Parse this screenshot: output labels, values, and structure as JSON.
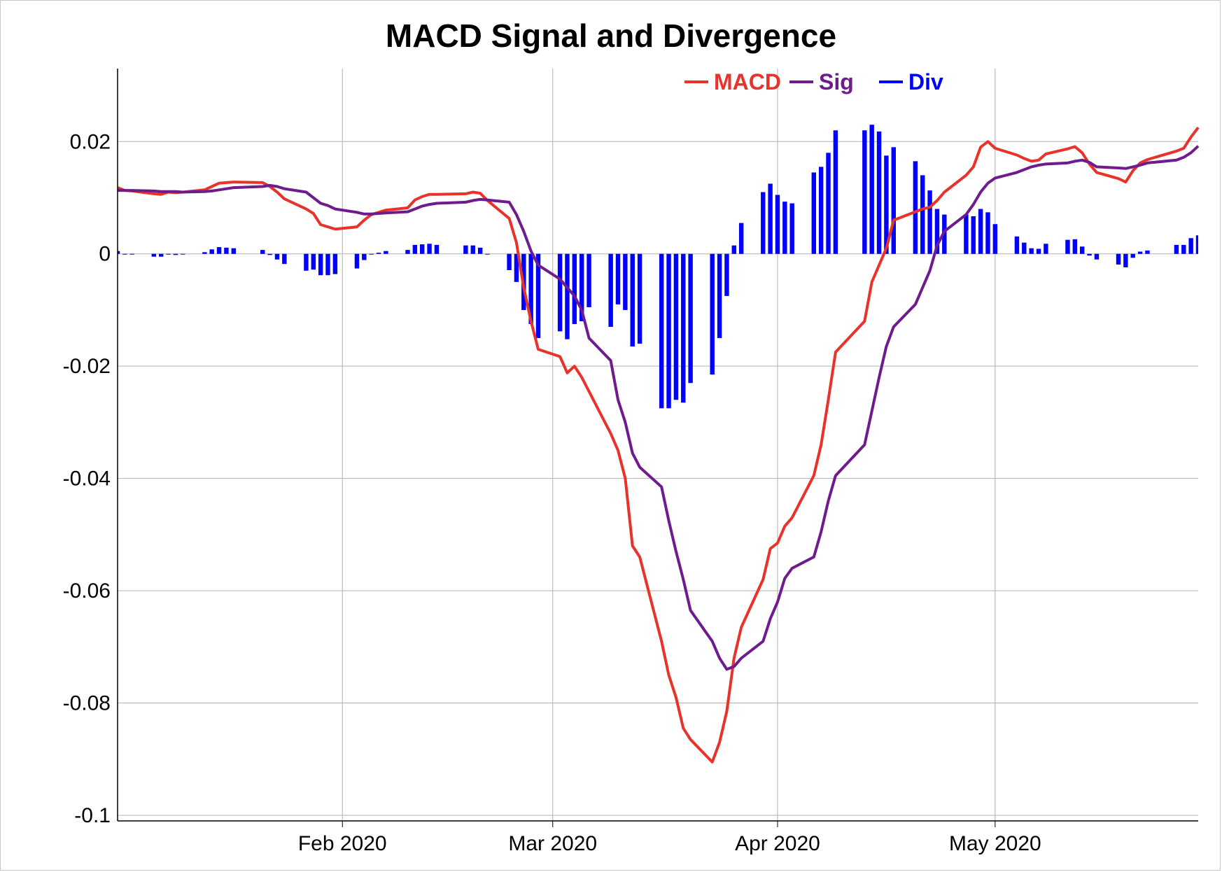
{
  "chart_data": {
    "type": "line",
    "title": "MACD Signal and Divergence",
    "xlabel": "",
    "ylabel": "",
    "x_range": [
      "2020-01-01",
      "2020-05-29"
    ],
    "ylim": [
      -0.101,
      0.033
    ],
    "yticks": [
      0.02,
      0,
      -0.02,
      -0.04,
      -0.06,
      -0.08,
      -0.1
    ],
    "ytick_labels": [
      "0.02",
      "0",
      "-0.02",
      "-0.04",
      "-0.06",
      "-0.08",
      "-0.1"
    ],
    "xticks": [
      "2020-02-01",
      "2020-03-01",
      "2020-04-01",
      "2020-05-01"
    ],
    "xtick_labels": [
      "Feb 2020",
      "Mar 2020",
      "Apr 2020",
      "May 2020"
    ],
    "grid": true,
    "legend_position": "top-right",
    "dates": [
      "2020-01-01",
      "2020-01-02",
      "2020-01-03",
      "2020-01-06",
      "2020-01-07",
      "2020-01-08",
      "2020-01-09",
      "2020-01-10",
      "2020-01-13",
      "2020-01-14",
      "2020-01-15",
      "2020-01-16",
      "2020-01-17",
      "2020-01-21",
      "2020-01-22",
      "2020-01-23",
      "2020-01-24",
      "2020-01-27",
      "2020-01-28",
      "2020-01-29",
      "2020-01-30",
      "2020-01-31",
      "2020-02-03",
      "2020-02-04",
      "2020-02-05",
      "2020-02-06",
      "2020-02-07",
      "2020-02-10",
      "2020-02-11",
      "2020-02-12",
      "2020-02-13",
      "2020-02-14",
      "2020-02-18",
      "2020-02-19",
      "2020-02-20",
      "2020-02-21",
      "2020-02-24",
      "2020-02-25",
      "2020-02-26",
      "2020-02-27",
      "2020-02-28",
      "2020-03-02",
      "2020-03-03",
      "2020-03-04",
      "2020-03-05",
      "2020-03-06",
      "2020-03-09",
      "2020-03-10",
      "2020-03-11",
      "2020-03-12",
      "2020-03-13",
      "2020-03-16",
      "2020-03-17",
      "2020-03-18",
      "2020-03-19",
      "2020-03-20",
      "2020-03-23",
      "2020-03-24",
      "2020-03-25",
      "2020-03-26",
      "2020-03-27",
      "2020-03-30",
      "2020-03-31",
      "2020-04-01",
      "2020-04-02",
      "2020-04-03",
      "2020-04-06",
      "2020-04-07",
      "2020-04-08",
      "2020-04-09",
      "2020-04-13",
      "2020-04-14",
      "2020-04-15",
      "2020-04-16",
      "2020-04-17",
      "2020-04-20",
      "2020-04-21",
      "2020-04-22",
      "2020-04-23",
      "2020-04-24",
      "2020-04-27",
      "2020-04-28",
      "2020-04-29",
      "2020-04-30",
      "2020-05-01",
      "2020-05-04",
      "2020-05-05",
      "2020-05-06",
      "2020-05-07",
      "2020-05-08",
      "2020-05-11",
      "2020-05-12",
      "2020-05-13",
      "2020-05-14",
      "2020-05-15",
      "2020-05-18",
      "2020-05-19",
      "2020-05-20",
      "2020-05-21",
      "2020-05-22",
      "2020-05-26",
      "2020-05-27",
      "2020-05-28",
      "2020-05-29"
    ],
    "series": [
      {
        "name": "MACD",
        "color": "#e8332a",
        "kind": "line",
        "values": [
          0.0118,
          0.0113,
          0.0112,
          0.0107,
          0.0106,
          0.011,
          0.0109,
          0.011,
          0.0114,
          0.012,
          0.0126,
          0.0127,
          0.0128,
          0.0127,
          0.012,
          0.011,
          0.0098,
          0.008,
          0.0072,
          0.0052,
          0.0048,
          0.0044,
          0.0048,
          0.006,
          0.007,
          0.0074,
          0.0078,
          0.0082,
          0.0096,
          0.0102,
          0.0106,
          0.0106,
          0.0107,
          0.011,
          0.0108,
          0.0095,
          0.0063,
          0.002,
          -0.006,
          -0.012,
          -0.017,
          -0.0183,
          -0.0212,
          -0.02,
          -0.022,
          -0.0245,
          -0.032,
          -0.035,
          -0.04,
          -0.052,
          -0.054,
          -0.069,
          -0.075,
          -0.079,
          -0.0845,
          -0.0865,
          -0.0905,
          -0.087,
          -0.0815,
          -0.072,
          -0.0665,
          -0.058,
          -0.0525,
          -0.0515,
          -0.0485,
          -0.047,
          -0.0395,
          -0.034,
          -0.026,
          -0.0175,
          -0.012,
          -0.005,
          -0.002,
          0.001,
          0.006,
          0.0075,
          0.008,
          0.0083,
          0.0095,
          0.011,
          0.014,
          0.0155,
          0.019,
          0.02,
          0.0188,
          0.0176,
          0.017,
          0.0165,
          0.0167,
          0.0178,
          0.0187,
          0.0191,
          0.018,
          0.016,
          0.0145,
          0.0134,
          0.0128,
          0.0148,
          0.0162,
          0.0168,
          0.0183,
          0.0188,
          0.0208,
          0.0225
        ]
      },
      {
        "name": "Sig",
        "color": "#6e1b8e",
        "kind": "line",
        "values": [
          0.0113,
          0.0113,
          0.0113,
          0.0112,
          0.0111,
          0.0111,
          0.0111,
          0.011,
          0.0111,
          0.0112,
          0.0114,
          0.0116,
          0.0118,
          0.012,
          0.0122,
          0.012,
          0.0116,
          0.011,
          0.01,
          0.009,
          0.0086,
          0.008,
          0.0074,
          0.0071,
          0.0071,
          0.0072,
          0.0073,
          0.0075,
          0.008,
          0.0085,
          0.0088,
          0.009,
          0.0092,
          0.0095,
          0.0097,
          0.0096,
          0.0092,
          0.007,
          0.004,
          0.0005,
          -0.002,
          -0.0045,
          -0.006,
          -0.0075,
          -0.01,
          -0.015,
          -0.019,
          -0.026,
          -0.03,
          -0.0355,
          -0.038,
          -0.0415,
          -0.0475,
          -0.053,
          -0.058,
          -0.0635,
          -0.069,
          -0.072,
          -0.074,
          -0.0735,
          -0.072,
          -0.069,
          -0.065,
          -0.062,
          -0.0578,
          -0.056,
          -0.054,
          -0.0495,
          -0.044,
          -0.0395,
          -0.034,
          -0.028,
          -0.022,
          -0.0165,
          -0.013,
          -0.009,
          -0.006,
          -0.003,
          0.0015,
          0.004,
          0.007,
          0.0088,
          0.011,
          0.0126,
          0.0135,
          0.0145,
          0.015,
          0.0155,
          0.0158,
          0.016,
          0.0162,
          0.0165,
          0.0167,
          0.0163,
          0.0155,
          0.0153,
          0.0152,
          0.0155,
          0.0158,
          0.0162,
          0.0167,
          0.0172,
          0.018,
          0.0192
        ]
      },
      {
        "name": "Div",
        "color": "#0000ff",
        "kind": "bar",
        "values": [
          0.0005,
          0.0,
          -0.0001,
          -0.0005,
          -0.0005,
          -0.0001,
          -0.0002,
          0.0,
          0.0003,
          0.0008,
          0.0012,
          0.0011,
          0.001,
          0.0007,
          -0.0002,
          -0.001,
          -0.0018,
          -0.003,
          -0.0028,
          -0.0038,
          -0.0038,
          -0.0036,
          -0.0026,
          -0.0011,
          -0.0001,
          0.0002,
          0.0005,
          0.0007,
          0.0016,
          0.0017,
          0.0018,
          0.0016,
          0.0015,
          0.0015,
          0.0011,
          -0.0001,
          -0.0029,
          -0.005,
          -0.01,
          -0.0125,
          -0.015,
          -0.0138,
          -0.0152,
          -0.0125,
          -0.012,
          -0.0095,
          -0.013,
          -0.009,
          -0.01,
          -0.0165,
          -0.016,
          -0.0275,
          -0.0275,
          -0.026,
          -0.0265,
          -0.023,
          -0.0215,
          -0.015,
          -0.0075,
          0.0015,
          0.0055,
          0.011,
          0.0125,
          0.0105,
          0.0093,
          0.009,
          0.0145,
          0.0155,
          0.018,
          0.022,
          0.022,
          0.023,
          0.0218,
          0.0175,
          0.019,
          0.0165,
          0.014,
          0.0113,
          0.008,
          0.007,
          0.007,
          0.0067,
          0.008,
          0.0074,
          0.0053,
          0.0031,
          0.002,
          0.001,
          0.0009,
          0.0018,
          0.0025,
          0.0026,
          0.0013,
          -0.0003,
          -0.001,
          -0.0019,
          -0.0024,
          -0.0007,
          0.0004,
          0.0006,
          0.0016,
          0.0016,
          0.0028,
          0.0033
        ]
      }
    ]
  }
}
